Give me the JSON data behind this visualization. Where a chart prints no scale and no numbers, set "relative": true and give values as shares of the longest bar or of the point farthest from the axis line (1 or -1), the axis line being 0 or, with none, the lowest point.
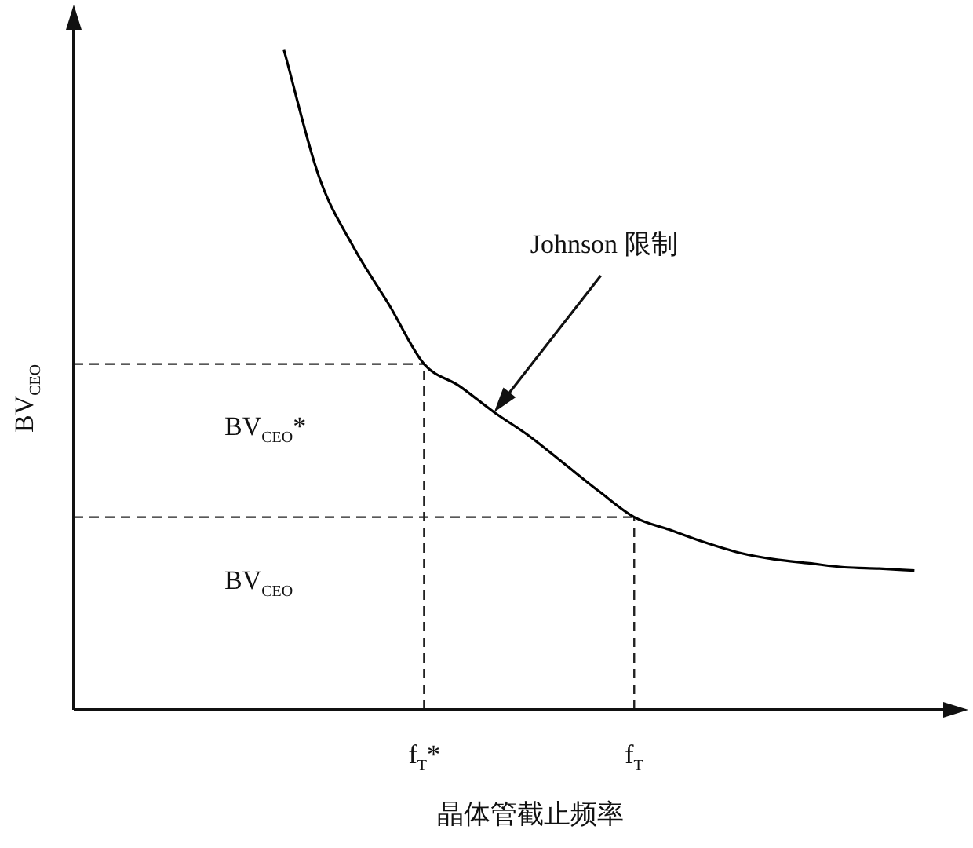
{
  "chart_data": {
    "type": "line",
    "relative": true,
    "xlabel": "晶体管截止频率",
    "ylabel": "BV$_{CEO}$",
    "categories": [
      null,
      null,
      null,
      null,
      null,
      null,
      null,
      null,
      null,
      null,
      "f$_{T}$*",
      null,
      null,
      null,
      null,
      null,
      "f$_{T}$",
      null,
      null,
      null,
      null,
      null,
      null,
      null,
      null,
      null
    ],
    "series": [
      {
        "color": "#000000",
        "values": [
          null,
          null,
          null,
          null,
          null,
          null,
          1,
          0.808,
          0.7,
          0.614,
          0.524,
          0.491,
          0.451,
          0.415,
          0.373,
          0.331,
          0.292,
          0.273,
          0.254,
          0.238,
          0.228,
          0.222,
          0.216,
          0.214,
          0.211,
          null
        ]
      }
    ],
    "ref_lines": [
      {
        "axis": "y",
        "value": 0.524,
        "line_style": "dashed",
        "label": "BV$_{CEO}$*"
      },
      {
        "axis": "y",
        "value": 0.292,
        "line_style": "dashed",
        "label": "BV$_{CEO}$"
      },
      {
        "axis": "x",
        "value": "f$_{T}$*",
        "line_style": "dashed"
      },
      {
        "axis": "x",
        "value": "f$_{T}$",
        "line_style": "dashed"
      }
    ],
    "annotations": [
      "Johnson 限制"
    ],
    "marker": "none"
  }
}
